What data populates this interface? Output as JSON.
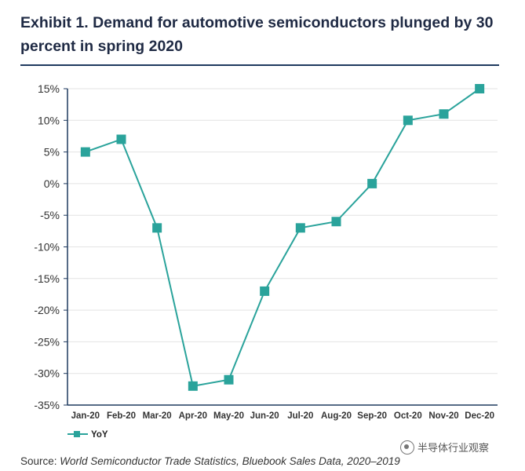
{
  "header": {
    "title": "Exhibit 1. Demand for automotive semiconductors plunged by 30 percent in spring 2020"
  },
  "source": {
    "prefix": "Source: ",
    "text": "World Semiconductor Trade Statistics, Bluebook Sales Data, 2020–2019"
  },
  "watermark": {
    "text": "半导体行业观察"
  },
  "colors": {
    "series": "#2aa39b",
    "title": "#1f2a44",
    "rule": "#1f3a5f",
    "axis": "#1f3a5f",
    "grid": "#e3e3e3"
  },
  "chart_data": {
    "type": "line",
    "categories": [
      "Jan-20",
      "Feb-20",
      "Mar-20",
      "Apr-20",
      "May-20",
      "Jun-20",
      "Jul-20",
      "Aug-20",
      "Sep-20",
      "Oct-20",
      "Nov-20",
      "Dec-20"
    ],
    "series": [
      {
        "name": "YoY",
        "values": [
          5,
          7,
          -7,
          -32,
          -31,
          -17,
          -7,
          -6,
          0,
          10,
          11,
          15
        ]
      }
    ],
    "ylim": [
      -35,
      15
    ],
    "yticks": [
      15,
      10,
      5,
      0,
      -5,
      -10,
      -15,
      -20,
      -25,
      -30,
      -35
    ],
    "ytick_labels": [
      "15%",
      "10%",
      "5%",
      "0%",
      "-5%",
      "-10%",
      "-15%",
      "-20%",
      "-25%",
      "-30%",
      "-35%"
    ],
    "grid": true,
    "legend": "bottom-left",
    "marker": "square"
  }
}
